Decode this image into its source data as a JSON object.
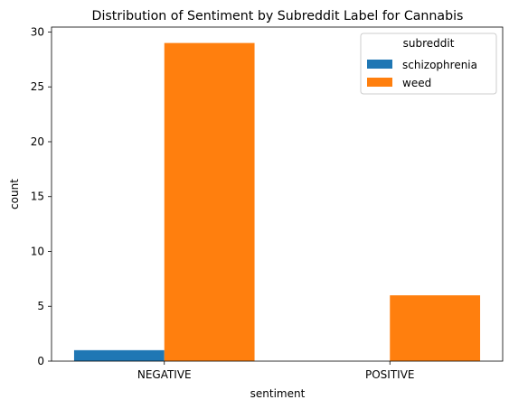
{
  "chart_data": {
    "type": "bar",
    "title": "Distribution of Sentiment by Subreddit Label for Cannabis",
    "xlabel": "sentiment",
    "ylabel": "count",
    "categories": [
      "NEGATIVE",
      "POSITIVE"
    ],
    "series": [
      {
        "name": "schizophrenia",
        "color": "#1f77b4",
        "values": [
          1,
          0
        ]
      },
      {
        "name": "weed",
        "color": "#ff7f0e",
        "values": [
          29,
          6
        ]
      }
    ],
    "ylim": [
      0,
      30.45
    ],
    "yticks": [
      0,
      5,
      10,
      15,
      20,
      25,
      30
    ],
    "legend": {
      "title": "subreddit",
      "placement": "top-right"
    },
    "grid": false
  }
}
